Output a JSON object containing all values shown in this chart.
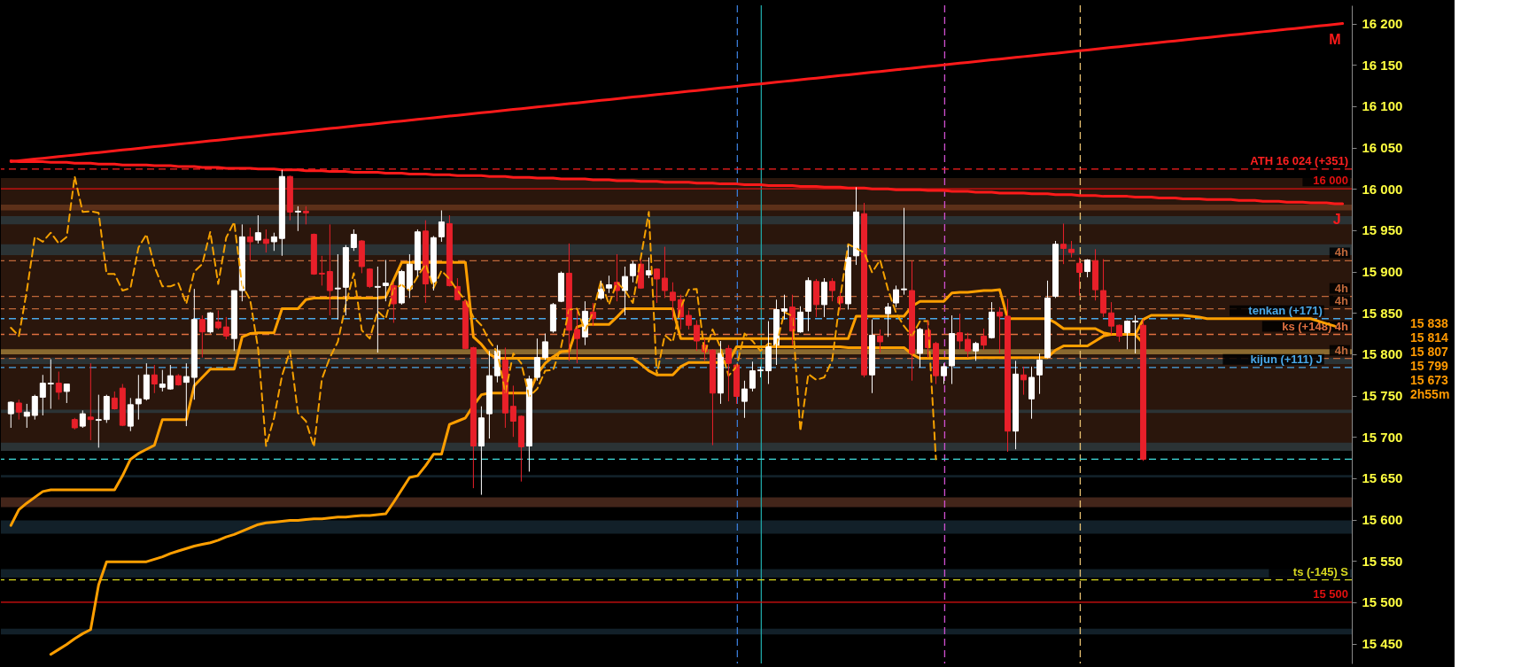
{
  "chart_data": {
    "type": "candlestick",
    "categories": [
      null,
      null,
      null,
      null,
      null,
      null,
      null,
      null,
      null,
      null,
      null,
      null,
      null,
      null,
      null,
      null,
      null,
      null,
      null,
      null,
      null,
      null,
      null,
      null,
      null,
      null,
      null,
      null,
      null,
      null,
      null,
      null,
      null,
      null,
      null,
      null,
      null,
      null,
      null,
      null,
      null,
      null,
      null,
      null,
      null,
      null,
      null,
      null,
      null,
      null,
      null,
      null,
      null,
      null,
      null,
      null,
      null,
      null,
      null,
      null,
      null,
      null,
      null,
      null,
      null,
      null,
      null,
      null,
      null,
      null,
      null,
      null,
      null,
      null,
      null,
      null,
      null,
      null,
      null,
      null,
      null,
      null,
      null,
      null,
      null,
      null,
      null,
      null,
      null,
      null,
      null,
      null,
      null,
      null,
      null,
      null,
      null,
      null,
      null,
      null,
      null,
      null,
      null,
      null,
      null,
      null,
      null,
      null,
      null,
      null,
      null,
      null,
      null,
      null,
      null,
      null,
      null,
      null,
      null,
      null,
      null,
      null,
      null,
      null,
      null,
      null,
      null,
      null,
      null,
      null,
      null,
      null,
      null,
      null,
      null,
      null,
      null,
      null,
      null,
      null,
      null,
      null,
      null,
      null,
      null,
      null,
      null,
      null,
      null,
      null,
      null,
      null,
      null,
      null,
      null,
      null,
      null,
      null,
      null,
      null,
      null,
      null,
      null,
      null,
      null,
      null,
      null,
      null
    ],
    "ohlc": [
      [
        15728,
        15743,
        15711,
        15742
      ],
      [
        15741,
        15745,
        15721,
        15730
      ],
      [
        15725,
        15740,
        15711,
        15730
      ],
      [
        15726,
        15751,
        15721,
        15749
      ],
      [
        15748,
        15775,
        15726,
        15765
      ],
      [
        15764,
        15794,
        15734,
        15765
      ],
      [
        15765,
        15779,
        15745,
        15754
      ],
      [
        15755,
        15764,
        15741,
        15764
      ],
      [
        15721,
        15723,
        15709,
        15711
      ],
      [
        15713,
        15732,
        15711,
        15728
      ],
      [
        15724,
        15789,
        15696,
        15721
      ],
      [
        15720,
        15751,
        15687,
        15721
      ],
      [
        15721,
        15751,
        15717,
        15749
      ],
      [
        15747,
        15755,
        15733,
        15734
      ],
      [
        15759,
        15764,
        15713,
        15714
      ],
      [
        15713,
        15747,
        15707,
        15739
      ],
      [
        15740,
        15775,
        15721,
        15746
      ],
      [
        15746,
        15789,
        15744,
        15775
      ],
      [
        15775,
        15787,
        15753,
        15764
      ],
      [
        15760,
        15781,
        15755,
        15764
      ],
      [
        15758,
        15787,
        15757,
        15774
      ],
      [
        15774,
        15776,
        15762,
        15763
      ],
      [
        15766,
        15789,
        15713,
        15773
      ],
      [
        15772,
        15879,
        15745,
        15842
      ],
      [
        15842,
        15847,
        15796,
        15827
      ],
      [
        15827,
        15851,
        15825,
        15850
      ],
      [
        15839,
        15853,
        15830,
        15832
      ],
      [
        15833,
        15845,
        15818,
        15822
      ],
      [
        15819,
        15877,
        15804,
        15877
      ],
      [
        15877,
        15957,
        15864,
        15942
      ],
      [
        15942,
        15953,
        15913,
        15936
      ],
      [
        15938,
        15968,
        15934,
        15947
      ],
      [
        15939,
        15951,
        15923,
        15934
      ],
      [
        15936,
        15947,
        15925,
        15942
      ],
      [
        15940,
        16023,
        15919,
        16015
      ],
      [
        16015,
        16016,
        15962,
        15972
      ],
      [
        15972,
        15979,
        15949,
        15973
      ],
      [
        15973,
        15979,
        15957,
        15971
      ],
      [
        15945,
        15946,
        15896,
        15897
      ],
      [
        15898,
        15919,
        15883,
        15897
      ],
      [
        15900,
        15957,
        15847,
        15877
      ],
      [
        15879,
        15921,
        15842,
        15880
      ],
      [
        15881,
        15932,
        15847,
        15929
      ],
      [
        15929,
        15951,
        15925,
        15945
      ],
      [
        15937,
        15938,
        15898,
        15906
      ],
      [
        15903,
        15904,
        15880,
        15882
      ],
      [
        15881,
        15906,
        15802,
        15882
      ],
      [
        15883,
        15914,
        15864,
        15886
      ],
      [
        15883,
        15887,
        15838,
        15861
      ],
      [
        15862,
        15902,
        15860,
        15900
      ],
      [
        15879,
        15921,
        15868,
        15909
      ],
      [
        15902,
        15951,
        15894,
        15948
      ],
      [
        15949,
        15962,
        15862,
        15885
      ],
      [
        15887,
        15943,
        15877,
        15941
      ],
      [
        15942,
        15974,
        15936,
        15960
      ],
      [
        15958,
        15968,
        15882,
        15883
      ],
      [
        15882,
        15892,
        15865,
        15866
      ],
      [
        15864,
        15866,
        15806,
        15807
      ],
      [
        15808,
        15809,
        15638,
        15689
      ],
      [
        15689,
        15737,
        15630,
        15723
      ],
      [
        15728,
        15804,
        15698,
        15774
      ],
      [
        15774,
        15811,
        15766,
        15804
      ],
      [
        15793,
        15808,
        15711,
        15729
      ],
      [
        15737,
        15762,
        15700,
        15719
      ],
      [
        15725,
        15726,
        15646,
        15688
      ],
      [
        15689,
        15774,
        15658,
        15770
      ],
      [
        15772,
        15819,
        15768,
        15796
      ],
      [
        15796,
        15825,
        15793,
        15815
      ],
      [
        15828,
        15862,
        15826,
        15860
      ],
      [
        15864,
        15900,
        15863,
        15898
      ],
      [
        15898,
        15934,
        15792,
        15829
      ],
      [
        15830,
        15853,
        15789,
        15819
      ],
      [
        15821,
        15864,
        15811,
        15852
      ],
      [
        15851,
        15862,
        15834,
        15843
      ],
      [
        15868,
        15889,
        15866,
        15879
      ],
      [
        15880,
        15895,
        15874,
        15884
      ],
      [
        15887,
        15921,
        15864,
        15877
      ],
      [
        15877,
        15906,
        15847,
        15894
      ],
      [
        15895,
        15913,
        15887,
        15909
      ],
      [
        15909,
        15915,
        15879,
        15880
      ],
      [
        15896,
        15917,
        15892,
        15901
      ],
      [
        15903,
        15904,
        15862,
        15891
      ],
      [
        15892,
        15930,
        15868,
        15877
      ],
      [
        15875,
        15887,
        15841,
        15865
      ],
      [
        15866,
        15872,
        15830,
        15845
      ],
      [
        15847,
        15853,
        15830,
        15835
      ],
      [
        15835,
        15841,
        15804,
        15816
      ],
      [
        15811,
        15819,
        15792,
        15803
      ],
      [
        15805,
        15806,
        15690,
        15753
      ],
      [
        15753,
        15816,
        15740,
        15801
      ],
      [
        15807,
        15811,
        15743,
        15789
      ],
      [
        15787,
        15788,
        15740,
        15749
      ],
      [
        15743,
        15768,
        15723,
        15758
      ],
      [
        15759,
        15791,
        15755,
        15780
      ],
      [
        15780,
        15785,
        15772,
        15781
      ],
      [
        15780,
        15840,
        15764,
        15809
      ],
      [
        15811,
        15866,
        15787,
        15854
      ],
      [
        15852,
        15872,
        15842,
        15855
      ],
      [
        15857,
        15872,
        15811,
        15828
      ],
      [
        15827,
        15858,
        15826,
        15851
      ],
      [
        15852,
        15893,
        15828,
        15889
      ],
      [
        15888,
        15891,
        15845,
        15860
      ],
      [
        15860,
        15892,
        15845,
        15887
      ],
      [
        15888,
        15892,
        15864,
        15877
      ],
      [
        15869,
        15875,
        15853,
        15862
      ],
      [
        15861,
        15932,
        15854,
        15917
      ],
      [
        15919,
        16002,
        15908,
        15972
      ],
      [
        15970,
        15983,
        15772,
        15775
      ],
      [
        15775,
        15842,
        15753,
        15823
      ],
      [
        15822,
        15830,
        15802,
        15815
      ],
      [
        15849,
        15862,
        15821,
        15857
      ],
      [
        15862,
        15883,
        15857,
        15878
      ],
      [
        15878,
        15977,
        15872,
        15879
      ],
      [
        15877,
        15913,
        15768,
        15801
      ],
      [
        15801,
        15832,
        15784,
        15830
      ],
      [
        15829,
        15841,
        15796,
        15808
      ],
      [
        15813,
        15815,
        15764,
        15774
      ],
      [
        15774,
        15789,
        15764,
        15785
      ],
      [
        15786,
        15847,
        15764,
        15825
      ],
      [
        15826,
        15849,
        15806,
        15816
      ],
      [
        15818,
        15826,
        15796,
        15804
      ],
      [
        15804,
        15815,
        15792,
        15813
      ],
      [
        15822,
        15831,
        15805,
        15811
      ],
      [
        15820,
        15863,
        15819,
        15851
      ],
      [
        15851,
        15857,
        15801,
        15846
      ],
      [
        15846,
        15867,
        15682,
        15707
      ],
      [
        15707,
        15792,
        15685,
        15776
      ],
      [
        15775,
        15785,
        15751,
        15769
      ],
      [
        15746,
        15785,
        15722,
        15772
      ],
      [
        15775,
        15801,
        15752,
        15793
      ],
      [
        15796,
        15889,
        15795,
        15868
      ],
      [
        15870,
        15937,
        15868,
        15933
      ],
      [
        15933,
        15958,
        15909,
        15928
      ],
      [
        15927,
        15937,
        15917,
        15923
      ],
      [
        15910,
        15917,
        15871,
        15899
      ],
      [
        15900,
        15915,
        15893,
        15914
      ],
      [
        15913,
        15927,
        15865,
        15878
      ],
      [
        15877,
        15915,
        15845,
        15850
      ],
      [
        15850,
        15863,
        15824,
        15834
      ],
      [
        15835,
        15836,
        15815,
        15822
      ],
      [
        15826,
        15841,
        15806,
        15840
      ],
      [
        15839,
        15847,
        15801,
        15840
      ],
      [
        15835,
        15842,
        15671,
        15673
      ],
      null,
      null,
      null,
      null,
      null,
      null,
      null,
      null,
      null,
      null,
      null,
      null,
      null,
      null,
      null,
      null,
      null,
      null,
      null,
      null,
      null,
      null,
      null,
      null,
      null
    ],
    "colors": [
      "#ffffff",
      "#e8202a",
      "#ffffff",
      "#ffffff",
      "#ffffff",
      "#ffffff",
      "#e8202a",
      "#ffffff",
      "#e8202a",
      "#ffffff",
      "#e8202a",
      "#ffffff",
      "#ffffff",
      "#e8202a",
      "#e8202a",
      "#ffffff",
      "#ffffff",
      "#ffffff",
      "#e8202a",
      "#ffffff",
      "#ffffff",
      "#e8202a",
      "#ffffff",
      "#ffffff",
      "#e8202a",
      "#ffffff",
      "#e8202a",
      "#e8202a",
      "#ffffff",
      "#ffffff",
      "#e8202a",
      "#ffffff",
      "#e8202a",
      "#ffffff",
      "#ffffff",
      "#e8202a",
      "#ffffff",
      "#e8202a",
      "#e8202a",
      "#e8202a",
      "#e8202a",
      "#ffffff",
      "#ffffff",
      "#ffffff",
      "#e8202a",
      "#e8202a",
      "#ffffff",
      "#ffffff",
      "#e8202a",
      "#ffffff",
      "#ffffff",
      "#ffffff",
      "#e8202a",
      "#ffffff",
      "#ffffff",
      "#e8202a",
      "#e8202a",
      "#e8202a",
      "#e8202a",
      "#ffffff",
      "#ffffff",
      "#ffffff",
      "#e8202a",
      "#e8202a",
      "#e8202a",
      "#ffffff",
      "#ffffff",
      "#ffffff",
      "#ffffff",
      "#ffffff",
      "#e8202a",
      "#e8202a",
      "#ffffff",
      "#e8202a",
      "#ffffff",
      "#ffffff",
      "#e8202a",
      "#ffffff",
      "#ffffff",
      "#e8202a",
      "#ffffff",
      "#e8202a",
      "#e8202a",
      "#e8202a",
      "#e8202a",
      "#e8202a",
      "#e8202a",
      "#e8202a",
      "#e8202a",
      "#ffffff",
      "#e8202a",
      "#e8202a",
      "#ffffff",
      "#ffffff",
      "#ffffff",
      "#ffffff",
      "#ffffff",
      "#ffffff",
      "#e8202a",
      "#ffffff",
      "#ffffff",
      "#e8202a",
      "#ffffff",
      "#e8202a",
      "#e8202a",
      "#ffffff",
      "#ffffff",
      "#e8202a",
      "#ffffff",
      "#e8202a",
      "#ffffff",
      "#ffffff",
      "#ffffff",
      "#e8202a",
      "#ffffff",
      "#e8202a",
      "#e8202a",
      "#ffffff",
      "#ffffff",
      "#e8202a",
      "#e8202a",
      "#ffffff",
      "#e8202a",
      "#ffffff",
      "#e8202a",
      "#e8202a",
      "#ffffff",
      "#e8202a",
      "#ffffff",
      "#ffffff",
      "#ffffff",
      "#ffffff",
      "#e8202a",
      "#e8202a",
      "#e8202a",
      "#ffffff",
      "#e8202a",
      "#e8202a",
      "#e8202a",
      "#e8202a",
      "#ffffff",
      "#ffffff",
      "#e8202a",
      null,
      null,
      null,
      null,
      null,
      null,
      null,
      null,
      null,
      null,
      null,
      null,
      null,
      null,
      null,
      null,
      null,
      null,
      null,
      null,
      null,
      null,
      null,
      null,
      null
    ],
    "ylim": [
      15426,
      16222
    ],
    "yticks": [
      {
        "value": 15450,
        "label": "15 450"
      },
      {
        "value": 15500,
        "label": "15 500"
      },
      {
        "value": 15550,
        "label": "15 550"
      },
      {
        "value": 15600,
        "label": "15 600"
      },
      {
        "value": 15650,
        "label": "15 650"
      },
      {
        "value": 15700,
        "label": "15 700"
      },
      {
        "value": 15750,
        "label": "15 750"
      },
      {
        "value": 15800,
        "label": "15 800"
      },
      {
        "value": 15850,
        "label": "15 850"
      },
      {
        "value": 15900,
        "label": "15 900"
      },
      {
        "value": 15950,
        "label": "15 950"
      },
      {
        "value": 16000,
        "label": "16 000"
      },
      {
        "value": 16050,
        "label": "16 050"
      },
      {
        "value": 16100,
        "label": "16 100"
      },
      {
        "value": 16150,
        "label": "16 150"
      },
      {
        "value": 16200,
        "label": "16 200"
      }
    ],
    "tick_labels": "y",
    "series": [
      {
        "type": "line",
        "color": "#ff9f00",
        "values": [
          15593,
          15612,
          15620,
          15627,
          15634,
          15636,
          15636,
          15636,
          15636,
          15636,
          15636,
          15636,
          15636,
          15636,
          15653,
          15673,
          15680,
          15685,
          15690,
          15721,
          15721,
          15721,
          15721,
          15762,
          15772,
          15782,
          15782,
          15782,
          15782,
          15821,
          15825,
          15826,
          15826,
          15826,
          15855,
          15855,
          15855,
          15866,
          15868,
          15868,
          15868,
          15868,
          15868,
          15868,
          15868,
          15868,
          15868,
          15869,
          15890,
          15911,
          15911,
          15911,
          15911,
          15911,
          15911,
          15911,
          15911,
          15911,
          15821,
          15812,
          15800,
          15795,
          15795,
          15795,
          15795,
          15795,
          15795,
          15795,
          15795,
          15795,
          15795,
          15795,
          15795,
          15795,
          15795,
          15795,
          15795,
          15795,
          15795,
          15788,
          15780,
          15775,
          15775,
          15775,
          15785,
          15790,
          15790,
          15790,
          15790,
          15790,
          15790,
          15809,
          15809,
          15809,
          15809,
          15809,
          15809,
          15809,
          15809,
          15809,
          15809,
          15809,
          15809,
          15809,
          15809,
          15808,
          15808,
          15808,
          15808,
          15808,
          15808,
          15808,
          15808,
          15800,
          15795,
          15795,
          15795,
          15795,
          15795,
          15795,
          15795,
          15796,
          15796,
          15796,
          15796,
          15796,
          15796,
          15796,
          15796,
          15796,
          15796,
          15805,
          15810,
          15810,
          15810,
          15810,
          15816,
          15822,
          15824,
          15824,
          15824,
          15824,
          15813,
          null,
          null,
          null,
          null,
          null,
          null,
          null,
          null,
          null,
          null,
          null,
          null,
          null,
          null,
          null,
          null,
          null,
          null,
          null,
          null,
          null,
          null,
          null,
          null,
          null
        ]
      },
      {
        "type": "line",
        "color": "#ff9f00",
        "values": [
          null,
          null,
          null,
          null,
          null,
          15437,
          15443,
          15449,
          15456,
          15462,
          15467,
          15521,
          15549,
          15549,
          15549,
          15549,
          15549,
          15549,
          15552,
          15555,
          15559,
          15562,
          15565,
          15568,
          15570,
          15572,
          15575,
          15579,
          15582,
          15586,
          15590,
          15594,
          15596,
          15597,
          15598,
          15599,
          15599,
          15600,
          15601,
          15601,
          15602,
          15603,
          15603,
          15604,
          15605,
          15605,
          15606,
          15607,
          15621,
          15636,
          15651,
          15653,
          15665,
          15679,
          15679,
          15715,
          15719,
          15723,
          15738,
          15751,
          15753,
          15753,
          15753,
          15753,
          15753,
          15753,
          15776,
          15789,
          15797,
          15803,
          15804,
          15833,
          15836,
          15836,
          15836,
          15836,
          15845,
          15855,
          15855,
          15855,
          15855,
          15855,
          15855,
          15855,
          15819,
          15819,
          15819,
          15819,
          15819,
          15819,
          15819,
          15819,
          15819,
          15819,
          15819,
          15819,
          15819,
          15819,
          15819,
          15819,
          15819,
          15819,
          15819,
          15819,
          15819,
          15819,
          15846,
          15846,
          15846,
          15846,
          15846,
          15846,
          15846,
          15858,
          15864,
          15864,
          15864,
          15864,
          15874,
          15875,
          15875,
          15876,
          15877,
          15877,
          15878,
          15843,
          15843,
          15843,
          15843,
          15843,
          15843,
          15838,
          15831,
          15831,
          15831,
          15831,
          15831,
          15826,
          15824,
          15824,
          15824,
          15824,
          15842,
          15847,
          15847,
          15847,
          15847,
          15847,
          15846,
          15845,
          15843,
          15843,
          15843,
          15843,
          15843,
          15843,
          15843,
          15843,
          15843,
          15843,
          15843,
          15843,
          15843,
          15843,
          15840,
          15837,
          15834,
          null
        ]
      },
      {
        "type": "line",
        "color": "#f5a000",
        "line_style": "dashed",
        "values": [
          15832,
          15822,
          15877,
          15942,
          15936,
          15947,
          15934,
          15942,
          16015,
          15972,
          15973,
          15971,
          15897,
          15897,
          15877,
          15880,
          15929,
          15945,
          15906,
          15882,
          15882,
          15886,
          15861,
          15900,
          15909,
          15948,
          15885,
          15941,
          15960,
          15883,
          15866,
          15807,
          15689,
          15723,
          15774,
          15804,
          15729,
          15719,
          15688,
          15770,
          15796,
          15815,
          15860,
          15898,
          15829,
          15819,
          15852,
          15843,
          15879,
          15884,
          15877,
          15894,
          15909,
          15880,
          15901,
          15891,
          15877,
          15865,
          15845,
          15835,
          15816,
          15803,
          15753,
          15801,
          15789,
          15749,
          15758,
          15780,
          15781,
          15809,
          15854,
          15855,
          15828,
          15851,
          15889,
          15860,
          15887,
          15877,
          15862,
          15917,
          15972,
          15775,
          15823,
          15815,
          15857,
          15878,
          15879,
          15801,
          15830,
          15808,
          15774,
          15785,
          15825,
          15816,
          15804,
          15813,
          15811,
          15851,
          15846,
          15707,
          15776,
          15769,
          15772,
          15793,
          15868,
          15933,
          15928,
          15923,
          15899,
          15914,
          15878,
          15850,
          15834,
          15822,
          15840,
          15840,
          15673,
          null,
          null,
          null,
          null,
          null,
          null,
          null,
          null,
          null,
          null,
          null,
          null,
          null,
          null,
          null,
          null,
          null,
          null,
          null,
          null,
          null,
          null,
          null,
          null,
          null,
          null,
          null,
          null,
          null,
          null,
          null,
          null,
          null,
          null,
          null,
          null,
          null,
          null,
          null,
          null,
          null,
          null,
          null,
          null,
          null,
          null,
          null,
          null,
          null,
          null,
          null
        ]
      },
      {
        "type": "line",
        "name": "M",
        "color": "#ff1a1a",
        "values": [
          16033,
          16034,
          16035,
          16036,
          16037,
          16038,
          16039,
          16040,
          16041,
          16042,
          16043,
          16044,
          16045,
          16046,
          16047,
          16048,
          16049,
          16050,
          16051,
          16052,
          16053,
          16054,
          16055,
          16056,
          16057,
          16058,
          16059,
          16060,
          16061,
          16062,
          16063,
          16064,
          16065,
          16066,
          16067,
          16068,
          16069,
          16070,
          16071,
          16072,
          16073,
          16074,
          16075,
          16076,
          16077,
          16078,
          16079,
          16080,
          16081,
          16082,
          16083,
          16084,
          16085,
          16086,
          16087,
          16088,
          16089,
          16090,
          16091,
          16092,
          16093,
          16094,
          16095,
          16096,
          16097,
          16098,
          16099,
          16100,
          16101,
          16102,
          16103,
          16104,
          16105,
          16106,
          16107,
          16108,
          16109,
          16110,
          16111,
          16112,
          16113,
          16114,
          16115,
          16116,
          16117,
          16118,
          16119,
          16120,
          16121,
          16122,
          16123,
          16124,
          16125,
          16126,
          16127,
          16128,
          16129,
          16130,
          16131,
          16132,
          16133,
          16134,
          16135,
          16136,
          16137,
          16138,
          16139,
          16140,
          16141,
          16142,
          16143,
          16144,
          16145,
          16146,
          16147,
          16148,
          16149,
          16150,
          16151,
          16152,
          16153,
          16154,
          16155,
          16156,
          16157,
          16158,
          16159,
          16160,
          16161,
          16162,
          16163,
          16164,
          16165,
          16166,
          16167,
          16168,
          16169,
          16170,
          16171,
          16172,
          16173,
          16174,
          16175,
          16176,
          16177,
          16178,
          16179,
          16180,
          16181,
          16182,
          16183,
          16184,
          16185,
          16186,
          16187,
          16188,
          16189,
          16190,
          16191,
          16192,
          16193,
          16194,
          16195,
          16196,
          16197,
          16198,
          16199,
          16200
        ]
      },
      {
        "type": "line",
        "name": "J",
        "color": "#ff1a1a",
        "values": [
          16034,
          16033,
          16033,
          16033,
          16033,
          16032,
          16032,
          16032,
          16031,
          16031,
          16031,
          16030,
          16030,
          16030,
          16029,
          16029,
          16029,
          16029,
          16028,
          16028,
          16028,
          16027,
          16027,
          16027,
          16026,
          16026,
          16026,
          16025,
          16025,
          16025,
          16025,
          16024,
          16024,
          16024,
          16023,
          16023,
          16023,
          16022,
          16022,
          16022,
          16021,
          16021,
          16021,
          16020,
          16020,
          16020,
          16020,
          16019,
          16019,
          16019,
          16018,
          16018,
          16018,
          16017,
          16017,
          16017,
          16016,
          16016,
          16016,
          16016,
          16015,
          16015,
          16015,
          16014,
          16014,
          16014,
          16013,
          16013,
          16013,
          16012,
          16012,
          16012,
          16012,
          16011,
          16011,
          16011,
          16010,
          16010,
          16010,
          16009,
          16009,
          16009,
          16008,
          16008,
          16008,
          16008,
          16007,
          16007,
          16007,
          16006,
          16006,
          16006,
          16005,
          16005,
          16005,
          16004,
          16004,
          16004,
          16004,
          16003,
          16003,
          16003,
          16002,
          16002,
          16002,
          16001,
          16001,
          16001,
          16000,
          16000,
          16000,
          15999,
          15999,
          15999,
          15999,
          15998,
          15998,
          15998,
          15997,
          15997,
          15997,
          15996,
          15996,
          15996,
          15995,
          15995,
          15995,
          15995,
          15994,
          15994,
          15994,
          15993,
          15993,
          15993,
          15992,
          15992,
          15992,
          15991,
          15991,
          15991,
          15991,
          15990,
          15990,
          15990,
          15989,
          15989,
          15989,
          15988,
          15988,
          15988,
          15987,
          15987,
          15987,
          15987,
          15986,
          15986,
          15986,
          15985,
          15985,
          15985,
          15984,
          15984,
          15984,
          15983,
          15983,
          15983,
          15982,
          15982
        ]
      }
    ],
    "bands": [
      {
        "axis": "y",
        "from": 15688,
        "to": 16013,
        "color": "#2a160c"
      },
      {
        "axis": "y",
        "from": 15974,
        "to": 15981,
        "color": "#5c3019"
      },
      {
        "axis": "y",
        "from": 15957,
        "to": 15967,
        "color": "#2b3335"
      },
      {
        "axis": "y",
        "from": 15920,
        "to": 15933,
        "color": "#2b3335"
      },
      {
        "axis": "y",
        "from": 15800,
        "to": 15806,
        "color": "#8a6a30"
      },
      {
        "axis": "y",
        "from": 15788,
        "to": 15796,
        "color": "#2b3335"
      },
      {
        "axis": "y",
        "from": 15729,
        "to": 15733,
        "color": "#2b3335"
      },
      {
        "axis": "y",
        "from": 15683,
        "to": 15693,
        "color": "#2b3335"
      },
      {
        "axis": "y",
        "from": 15651,
        "to": 15654,
        "color": "#122029"
      },
      {
        "axis": "y",
        "from": 15615,
        "to": 15627,
        "color": "#43251a"
      },
      {
        "axis": "y",
        "from": 15583,
        "to": 15599,
        "color": "#122029"
      },
      {
        "axis": "y",
        "from": 15530,
        "to": 15540,
        "color": "#122029"
      },
      {
        "axis": "y",
        "from": 15461,
        "to": 15468,
        "color": "#122029"
      }
    ],
    "ref_lines": [
      {
        "axis": "y",
        "value": 16024,
        "label": "ATH 16 024 (+351)",
        "color": "#ff2020",
        "line_style": "dashed"
      },
      {
        "axis": "y",
        "value": 16000,
        "label": "16 000",
        "color": "#e01010"
      },
      {
        "axis": "y",
        "value": 15500,
        "label": "15 500",
        "color": "#e01010"
      },
      {
        "axis": "y",
        "value": 15527,
        "label": "ts (-145) S",
        "color": "#d8d820",
        "line_style": "dashed"
      },
      {
        "axis": "y",
        "value": 15913,
        "label": "4h",
        "color": "#c0683a",
        "line_style": "dashed"
      },
      {
        "axis": "y",
        "value": 15870,
        "label": "4h",
        "color": "#c0683a",
        "line_style": "dashed"
      },
      {
        "axis": "y",
        "value": 15855,
        "label": "4h",
        "color": "#c0683a",
        "line_style": "dashed"
      },
      {
        "axis": "y",
        "value": 15843,
        "label": "tenkan (+171)",
        "color": "#4aa8e8",
        "line_style": "dashed"
      },
      {
        "axis": "y",
        "value": 15824,
        "label": "ks (+148) 4h",
        "color": "#e07040",
        "line_style": "dashed"
      },
      {
        "axis": "y",
        "value": 15795,
        "label": "4h",
        "color": "#c0683a",
        "line_style": "dashed"
      },
      {
        "axis": "y",
        "value": 15784,
        "label": "kijun (+111) J",
        "color": "#4aa8e8",
        "line_style": "dashed"
      },
      {
        "axis": "y",
        "value": 15673,
        "color": "#40e0e0",
        "line_style": "dashed"
      }
    ],
    "annotations": [
      "15 838",
      "15 814",
      "15 807",
      "15 799",
      "15 673",
      "2h55m"
    ]
  }
}
